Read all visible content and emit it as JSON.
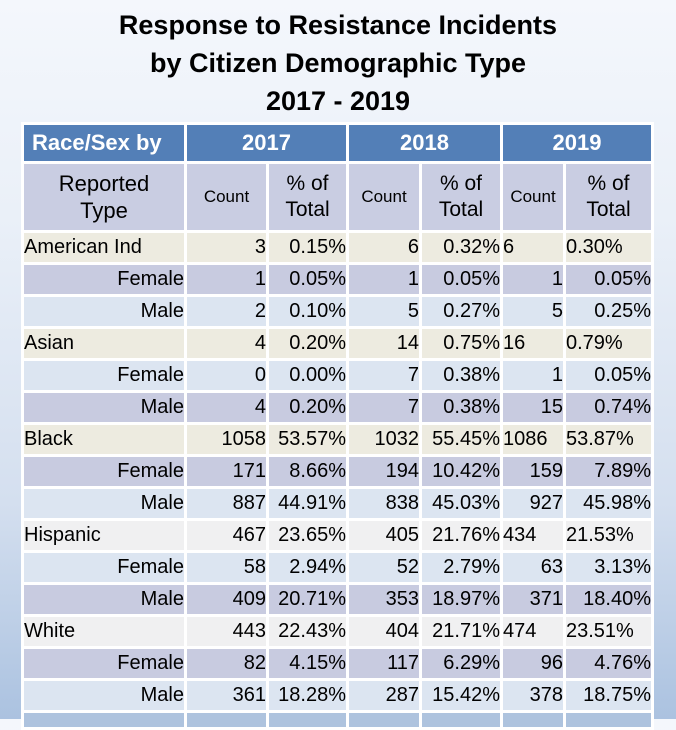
{
  "title": {
    "line1": "Response to Resistance Incidents",
    "line2": "by Citizen Demographic Type",
    "line3": "2017 - 2019"
  },
  "table": {
    "corner_label": "Race/Sex by",
    "years": [
      "2017",
      "2018",
      "2019"
    ],
    "row_header": {
      "line1": "Reported",
      "line2": "Type"
    },
    "count_label": "Count",
    "pct_label_line1": "% of",
    "pct_label_line2": "Total",
    "rows": [
      {
        "label": "American Ind",
        "level": "group",
        "band": "beige",
        "values": [
          "3",
          "0.15%",
          "6",
          "0.32%",
          "6",
          "0.30%"
        ]
      },
      {
        "label": "Female",
        "level": "sub",
        "band": "lav",
        "values": [
          "1",
          "0.05%",
          "1",
          "0.05%",
          "1",
          "0.05%"
        ]
      },
      {
        "label": "Male",
        "level": "sub",
        "band": "blue",
        "values": [
          "2",
          "0.10%",
          "5",
          "0.27%",
          "5",
          "0.25%"
        ]
      },
      {
        "label": "Asian",
        "level": "group",
        "band": "beige",
        "values": [
          "4",
          "0.20%",
          "14",
          "0.75%",
          "16",
          "0.79%"
        ]
      },
      {
        "label": "Female",
        "level": "sub",
        "band": "blue",
        "values": [
          "0",
          "0.00%",
          "7",
          "0.38%",
          "1",
          "0.05%"
        ]
      },
      {
        "label": "Male",
        "level": "sub",
        "band": "lav",
        "values": [
          "4",
          "0.20%",
          "7",
          "0.38%",
          "15",
          "0.74%"
        ]
      },
      {
        "label": "Black",
        "level": "group",
        "band": "beige",
        "values": [
          "1058",
          "53.57%",
          "1032",
          "55.45%",
          "1086",
          "53.87%"
        ]
      },
      {
        "label": "Female",
        "level": "sub",
        "band": "lav",
        "values": [
          "171",
          "8.66%",
          "194",
          "10.42%",
          "159",
          "7.89%"
        ]
      },
      {
        "label": "Male",
        "level": "sub",
        "band": "blue",
        "values": [
          "887",
          "44.91%",
          "838",
          "45.03%",
          "927",
          "45.98%"
        ]
      },
      {
        "label": "Hispanic",
        "level": "group",
        "band": "gray",
        "values": [
          "467",
          "23.65%",
          "405",
          "21.76%",
          "434",
          "21.53%"
        ]
      },
      {
        "label": "Female",
        "level": "sub",
        "band": "blue",
        "values": [
          "58",
          "2.94%",
          "52",
          "2.79%",
          "63",
          "3.13%"
        ]
      },
      {
        "label": "Male",
        "level": "sub",
        "band": "lav",
        "values": [
          "409",
          "20.71%",
          "353",
          "18.97%",
          "371",
          "18.40%"
        ]
      },
      {
        "label": "White",
        "level": "group",
        "band": "gray",
        "values": [
          "443",
          "22.43%",
          "404",
          "21.71%",
          "474",
          "23.51%"
        ]
      },
      {
        "label": "Female",
        "level": "sub",
        "band": "lav",
        "values": [
          "82",
          "4.15%",
          "117",
          "6.29%",
          "96",
          "4.76%"
        ]
      },
      {
        "label": "Male",
        "level": "sub",
        "band": "blue",
        "values": [
          "361",
          "18.28%",
          "287",
          "15.42%",
          "378",
          "18.75%"
        ]
      }
    ]
  },
  "colors": {
    "header_blue": "#537fb7",
    "subheader_lavender": "#c9cde2",
    "band_beige": "#edebe0",
    "band_lavender": "#c8cbe0",
    "band_lightblue": "#dce5f1",
    "band_gray": "#f0f0f1",
    "cutoff_row_blue": "#aec3de",
    "grid_white": "#ffffff"
  },
  "chart_data": {
    "type": "table",
    "title": "Response to Resistance Incidents by Citizen Demographic Type 2017 - 2019",
    "columns": [
      "Race/Sex by Reported Type",
      "2017 Count",
      "2017 % of Total",
      "2018 Count",
      "2018 % of Total",
      "2019 Count",
      "2019 % of Total"
    ],
    "rows": [
      [
        "American Ind",
        3,
        "0.15%",
        6,
        "0.32%",
        6,
        "0.30%"
      ],
      [
        "American Ind / Female",
        1,
        "0.05%",
        1,
        "0.05%",
        1,
        "0.05%"
      ],
      [
        "American Ind / Male",
        2,
        "0.10%",
        5,
        "0.27%",
        5,
        "0.25%"
      ],
      [
        "Asian",
        4,
        "0.20%",
        14,
        "0.75%",
        16,
        "0.79%"
      ],
      [
        "Asian / Female",
        0,
        "0.00%",
        7,
        "0.38%",
        1,
        "0.05%"
      ],
      [
        "Asian / Male",
        4,
        "0.20%",
        7,
        "0.38%",
        15,
        "0.74%"
      ],
      [
        "Black",
        1058,
        "53.57%",
        1032,
        "55.45%",
        1086,
        "53.87%"
      ],
      [
        "Black / Female",
        171,
        "8.66%",
        194,
        "10.42%",
        159,
        "7.89%"
      ],
      [
        "Black / Male",
        887,
        "44.91%",
        838,
        "45.03%",
        927,
        "45.98%"
      ],
      [
        "Hispanic",
        467,
        "23.65%",
        405,
        "21.76%",
        434,
        "21.53%"
      ],
      [
        "Hispanic / Female",
        58,
        "2.94%",
        52,
        "2.79%",
        63,
        "3.13%"
      ],
      [
        "Hispanic / Male",
        409,
        "20.71%",
        353,
        "18.97%",
        371,
        "18.40%"
      ],
      [
        "White",
        443,
        "22.43%",
        404,
        "21.71%",
        474,
        "23.51%"
      ],
      [
        "White / Female",
        82,
        "4.15%",
        117,
        "6.29%",
        96,
        "4.76%"
      ],
      [
        "White / Male",
        361,
        "18.28%",
        287,
        "15.42%",
        378,
        "18.75%"
      ]
    ]
  }
}
